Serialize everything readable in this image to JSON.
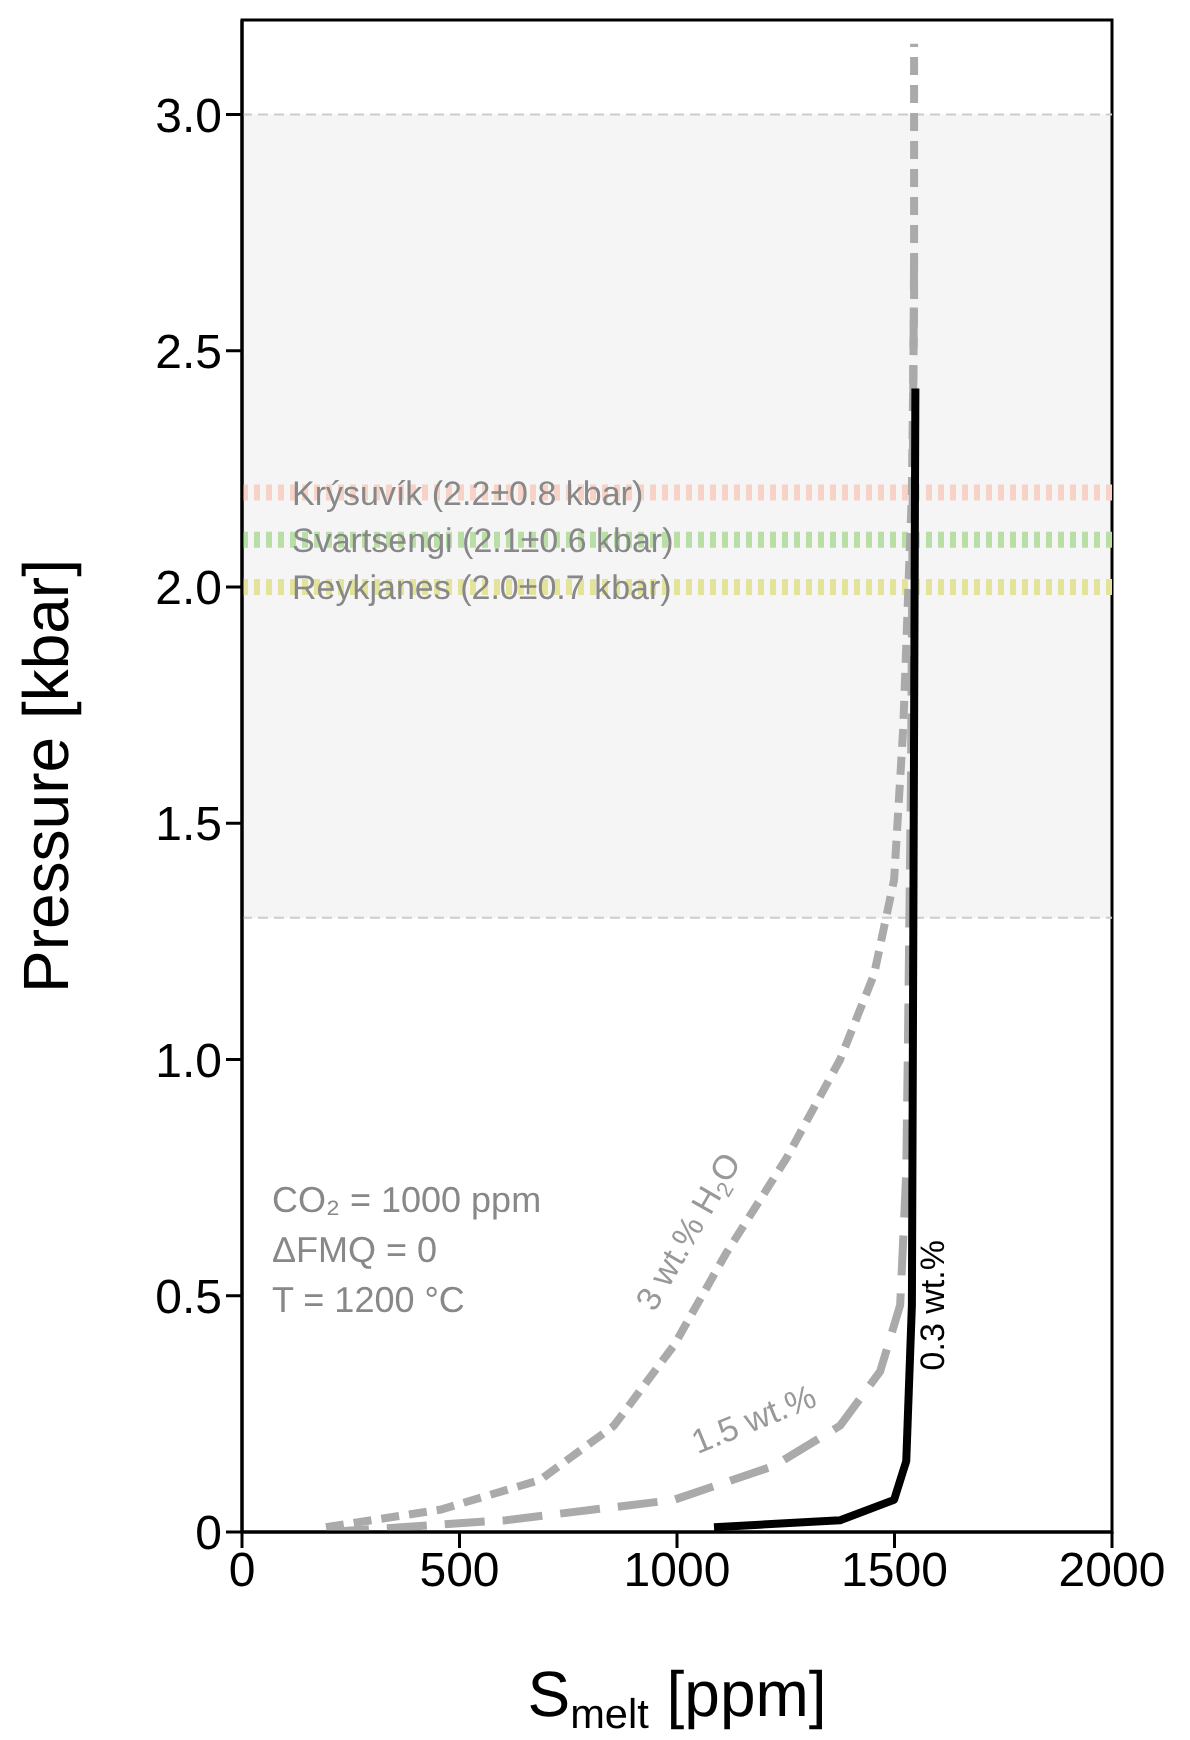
{
  "chart_data": {
    "type": "line",
    "xlabel": "S$_{melt}$ [ppm]",
    "ylabel": "Pressure [kbar]",
    "xlim": [
      0,
      2000
    ],
    "xticks": [
      0,
      500,
      1000,
      1500,
      2000
    ],
    "ylim": [
      0,
      3.2
    ],
    "yticks": [
      0,
      0.5,
      {
        "value": 1,
        "label": "1.0"
      },
      1.5,
      {
        "value": 2,
        "label": "2.0"
      },
      2.5,
      {
        "value": 3,
        "label": "3.0"
      }
    ],
    "marker": "none",
    "series": [
      {
        "name": "3 wt.% H$_{2}$O",
        "color": "#aaaaaa",
        "line_style": "dashed",
        "x": [
          193,
          455,
          685,
          855,
          993,
          1113,
          1251,
          1375,
          1453,
          1499,
          1520,
          1540,
          1545,
          1545
        ],
        "values": [
          0.01,
          0.047,
          0.11,
          0.225,
          0.395,
          0.59,
          0.79,
          1.0,
          1.18,
          1.38,
          1.7,
          2.2,
          2.6,
          3.15
        ]
      },
      {
        "name": "1.5 wt.%",
        "color": "#aaaaaa",
        "line_style": "dashed",
        "x": [
          200,
          607,
          993,
          1223,
          1375,
          1467,
          1513,
          1527,
          1531,
          1538,
          1545
        ],
        "values": [
          0.0,
          0.025,
          0.068,
          0.14,
          0.225,
          0.34,
          0.48,
          0.76,
          1.04,
          1.6,
          2.7
        ]
      },
      {
        "name": "0.3 wt.%",
        "color": "#000000",
        "line_style": "solid",
        "x": [
          1085,
          1375,
          1499,
          1527,
          1540,
          1548
        ],
        "values": [
          0.01,
          0.025,
          0.068,
          0.15,
          0.48,
          2.42
        ]
      }
    ],
    "bands": [
      {
        "axis": "y",
        "from": 1.3,
        "to": 3.0,
        "color": "#f5f5f5"
      }
    ],
    "ref_lines": [
      {
        "axis": "y",
        "value": 1.3,
        "label": null,
        "color": "#cccccc",
        "line_style": "dashed"
      },
      {
        "axis": "y",
        "value": 3.0,
        "label": null,
        "color": "#cccccc",
        "line_style": "dashed"
      },
      {
        "axis": "y",
        "value": 2.2,
        "label": "Krýsuvík (2.2±0.8 kbar)",
        "color": "#f6d3c6",
        "line_style": "dotted"
      },
      {
        "axis": "y",
        "value": 2.1,
        "label": "Svartsengi (2.1±0.6 kbar)",
        "color": "#b9dfa6",
        "line_style": "dotted"
      },
      {
        "axis": "y",
        "value": 2.0,
        "label": "Reykjanes (2.0±0.7 kbar)",
        "color": "#e3e39a",
        "line_style": "dotted"
      }
    ],
    "annotations": [
      "CO₂ = 1000 ppm",
      "ΔFMQ = 0",
      "T = 1200 °C"
    ]
  }
}
